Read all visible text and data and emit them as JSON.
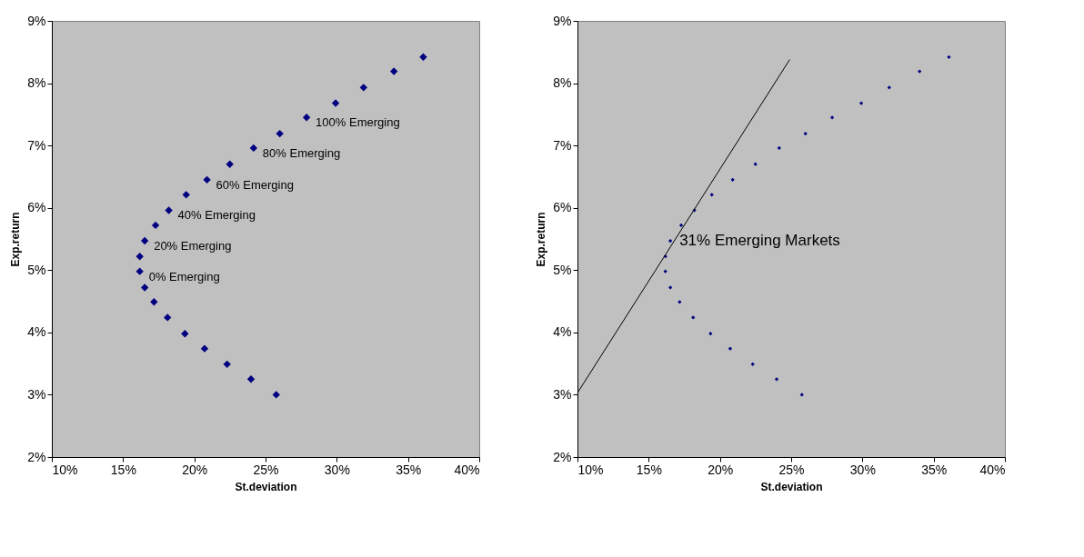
{
  "chart_data": [
    {
      "type": "scatter",
      "xlabel": "St.deviation",
      "ylabel": "Exp.return",
      "marker": "diamond",
      "grid": false,
      "legend": false,
      "xlim": [
        10,
        40
      ],
      "ylim": [
        2,
        9
      ],
      "xticks": [
        {
          "value": 10,
          "label": "10%"
        },
        {
          "value": 15,
          "label": "15%"
        },
        {
          "value": 20,
          "label": "20%"
        },
        {
          "value": 25,
          "label": "25%"
        },
        {
          "value": 30,
          "label": "30%"
        },
        {
          "value": 35,
          "label": "35%"
        },
        {
          "value": 40,
          "label": "40%"
        }
      ],
      "yticks": [
        {
          "value": 2,
          "label": "2%"
        },
        {
          "value": 3,
          "label": "3%"
        },
        {
          "value": 4,
          "label": "4%"
        },
        {
          "value": 5,
          "label": "5%"
        },
        {
          "value": 6,
          "label": "6%"
        },
        {
          "value": 7,
          "label": "7%"
        },
        {
          "value": 8,
          "label": "8%"
        },
        {
          "value": 9,
          "label": "9%"
        }
      ],
      "series": [
        {
          "type": "scatter",
          "color": "#000080",
          "x": [
            36.07,
            34.01,
            31.88,
            29.92,
            27.88,
            26.0,
            24.16,
            22.49,
            20.89,
            19.43,
            18.21,
            17.28,
            16.52,
            16.17,
            16.17,
            16.52,
            17.17,
            18.12,
            19.34,
            20.72,
            22.3,
            23.98,
            25.75
          ],
          "values": [
            8.42,
            8.19,
            7.93,
            7.68,
            7.45,
            7.19,
            6.96,
            6.7,
            6.45,
            6.21,
            5.96,
            5.72,
            5.47,
            5.22,
            4.98,
            4.72,
            4.49,
            4.24,
            3.98,
            3.74,
            3.49,
            3.25,
            3.0
          ]
        }
      ],
      "annotations": [
        {
          "text": "100% Emerging",
          "x": 27.88,
          "y": 7.45
        },
        {
          "text": "80% Emerging",
          "x": 24.16,
          "y": 6.96
        },
        {
          "text": "60% Emerging",
          "x": 20.89,
          "y": 6.45
        },
        {
          "text": "40% Emerging",
          "x": 18.21,
          "y": 5.96
        },
        {
          "text": "20% Emerging",
          "x": 16.52,
          "y": 5.47
        },
        {
          "text": "0% Emerging",
          "x": 16.17,
          "y": 4.98
        }
      ]
    },
    {
      "type": "scatter",
      "xlabel": "St.deviation",
      "ylabel": "Exp.return",
      "marker": "diamond",
      "grid": false,
      "legend": false,
      "xlim": [
        10,
        40
      ],
      "ylim": [
        2,
        9
      ],
      "xticks": [
        {
          "value": 10,
          "label": "10%"
        },
        {
          "value": 15,
          "label": "15%"
        },
        {
          "value": 20,
          "label": "20%"
        },
        {
          "value": 25,
          "label": "25%"
        },
        {
          "value": 30,
          "label": "30%"
        },
        {
          "value": 35,
          "label": "35%"
        },
        {
          "value": 40,
          "label": "40%"
        }
      ],
      "yticks": [
        {
          "value": 2,
          "label": "2%"
        },
        {
          "value": 3,
          "label": "3%"
        },
        {
          "value": 4,
          "label": "4%"
        },
        {
          "value": 5,
          "label": "5%"
        },
        {
          "value": 6,
          "label": "6%"
        },
        {
          "value": 7,
          "label": "7%"
        },
        {
          "value": 8,
          "label": "8%"
        },
        {
          "value": 9,
          "label": "9%"
        }
      ],
      "series": [
        {
          "type": "scatter",
          "color": "#000080",
          "x": [
            36.07,
            34.01,
            31.88,
            29.92,
            27.88,
            26.0,
            24.16,
            22.49,
            20.89,
            19.43,
            18.21,
            17.28,
            16.52,
            16.17,
            16.17,
            16.52,
            17.17,
            18.12,
            19.34,
            20.72,
            22.3,
            23.98,
            25.75
          ],
          "values": [
            8.42,
            8.19,
            7.93,
            7.68,
            7.45,
            7.19,
            6.96,
            6.7,
            6.45,
            6.21,
            5.96,
            5.72,
            5.47,
            5.22,
            4.98,
            4.72,
            4.49,
            4.24,
            3.98,
            3.74,
            3.49,
            3.25,
            3.0
          ]
        },
        {
          "type": "line",
          "color": "#000000",
          "marker": "none",
          "line_style": "solid",
          "x": [
            10,
            24.9
          ],
          "values": [
            3.03,
            8.38
          ]
        }
      ],
      "annotations": [
        {
          "text": "31% Emerging Markets",
          "x": 16.52,
          "y": 5.47
        }
      ]
    }
  ]
}
